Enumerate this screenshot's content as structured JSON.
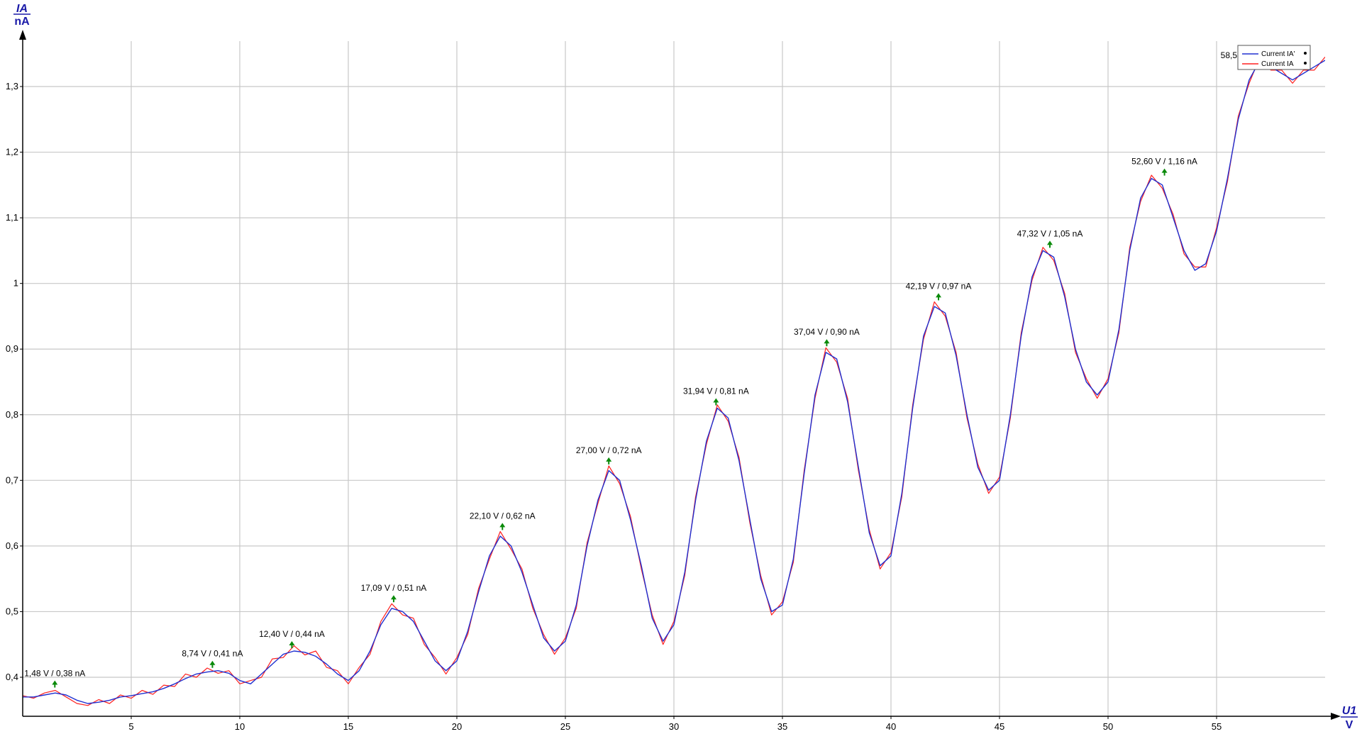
{
  "chart_data": {
    "type": "line",
    "title": "",
    "y_axis": {
      "label": "IA",
      "unit": "nA",
      "lim": [
        0.33,
        1.37
      ],
      "ticks": [
        0.4,
        0.5,
        0.6,
        0.7,
        0.8,
        0.9,
        1,
        1.1,
        1.2,
        1.3
      ],
      "tick_labels": [
        "0,4",
        "0,5",
        "0,6",
        "0,7",
        "0,8",
        "0,9",
        "1",
        "1,1",
        "1,2",
        "1,3"
      ]
    },
    "x_axis": {
      "label": "U1",
      "unit": "V",
      "lim": [
        0,
        60
      ],
      "ticks": [
        5,
        10,
        15,
        20,
        25,
        30,
        35,
        40,
        45,
        50,
        55
      ],
      "tick_labels": [
        "5",
        "10",
        "15",
        "20",
        "25",
        "30",
        "35",
        "40",
        "45",
        "50",
        "55"
      ]
    },
    "grid": true,
    "legend": {
      "placement": "top-right",
      "entries": [
        {
          "name": "Current IA'",
          "color": "#2030d0"
        },
        {
          "name": "Current IA",
          "color": "#ff2020"
        }
      ]
    },
    "series": [
      {
        "name": "Current IA'",
        "color": "#2030d0",
        "x": [
          0,
          0.5,
          1,
          1.5,
          2,
          2.5,
          3,
          3.5,
          4,
          4.5,
          5,
          5.5,
          6,
          6.5,
          7,
          7.5,
          8,
          8.5,
          9,
          9.5,
          10,
          10.5,
          11,
          11.5,
          12,
          12.5,
          13,
          13.5,
          14,
          14.5,
          15,
          15.5,
          16,
          16.5,
          17,
          17.5,
          18,
          18.5,
          19,
          19.5,
          20,
          20.5,
          21,
          21.5,
          22,
          22.5,
          23,
          23.5,
          24,
          24.5,
          25,
          25.5,
          26,
          26.5,
          27,
          27.5,
          28,
          28.5,
          29,
          29.5,
          30,
          30.5,
          31,
          31.5,
          32,
          32.5,
          33,
          33.5,
          34,
          34.5,
          35,
          35.5,
          36,
          36.5,
          37,
          37.5,
          38,
          38.5,
          39,
          39.5,
          40,
          40.5,
          41,
          41.5,
          42,
          42.5,
          43,
          43.5,
          44,
          44.5,
          45,
          45.5,
          46,
          46.5,
          47,
          47.5,
          48,
          48.5,
          49,
          49.5,
          50,
          50.5,
          51,
          51.5,
          52,
          52.5,
          53,
          53.5,
          54,
          54.5,
          55,
          55.5,
          56,
          56.5,
          57,
          57.5,
          58,
          58.5,
          59,
          59.5,
          60
        ],
        "values": [
          0.37,
          0.37,
          0.373,
          0.376,
          0.373,
          0.365,
          0.36,
          0.362,
          0.365,
          0.37,
          0.372,
          0.375,
          0.378,
          0.383,
          0.39,
          0.398,
          0.405,
          0.408,
          0.41,
          0.406,
          0.395,
          0.39,
          0.405,
          0.42,
          0.435,
          0.44,
          0.438,
          0.432,
          0.42,
          0.405,
          0.395,
          0.41,
          0.44,
          0.48,
          0.505,
          0.5,
          0.485,
          0.455,
          0.425,
          0.41,
          0.425,
          0.47,
          0.53,
          0.585,
          0.615,
          0.6,
          0.56,
          0.51,
          0.46,
          0.44,
          0.455,
          0.51,
          0.6,
          0.67,
          0.715,
          0.7,
          0.64,
          0.57,
          0.49,
          0.455,
          0.48,
          0.56,
          0.67,
          0.76,
          0.81,
          0.795,
          0.73,
          0.64,
          0.55,
          0.5,
          0.51,
          0.58,
          0.71,
          0.83,
          0.895,
          0.885,
          0.82,
          0.72,
          0.62,
          0.57,
          0.585,
          0.68,
          0.81,
          0.92,
          0.965,
          0.955,
          0.89,
          0.8,
          0.72,
          0.685,
          0.7,
          0.8,
          0.92,
          1.01,
          1.05,
          1.04,
          0.98,
          0.9,
          0.85,
          0.83,
          0.85,
          0.93,
          1.05,
          1.13,
          1.16,
          1.15,
          1.1,
          1.05,
          1.02,
          1.03,
          1.08,
          1.16,
          1.25,
          1.31,
          1.34,
          1.33,
          1.32,
          1.31,
          1.32,
          1.33,
          1.34
        ]
      },
      {
        "name": "Current IA",
        "color": "#ff2020",
        "x": [
          0,
          0.5,
          1,
          1.5,
          2,
          2.5,
          3,
          3.5,
          4,
          4.5,
          5,
          5.5,
          6,
          6.5,
          7,
          7.5,
          8,
          8.5,
          9,
          9.5,
          10,
          10.5,
          11,
          11.5,
          12,
          12.5,
          13,
          13.5,
          14,
          14.5,
          15,
          15.5,
          16,
          16.5,
          17,
          17.5,
          18,
          18.5,
          19,
          19.5,
          20,
          20.5,
          21,
          21.5,
          22,
          22.5,
          23,
          23.5,
          24,
          24.5,
          25,
          25.5,
          26,
          26.5,
          27,
          27.5,
          28,
          28.5,
          29,
          29.5,
          30,
          30.5,
          31,
          31.5,
          32,
          32.5,
          33,
          33.5,
          34,
          34.5,
          35,
          35.5,
          36,
          36.5,
          37,
          37.5,
          38,
          38.5,
          39,
          39.5,
          40,
          40.5,
          41,
          41.5,
          42,
          42.5,
          43,
          43.5,
          44,
          44.5,
          45,
          45.5,
          46,
          46.5,
          47,
          47.5,
          48,
          48.5,
          49,
          49.5,
          50,
          50.5,
          51,
          51.5,
          52,
          52.5,
          53,
          53.5,
          54,
          54.5,
          55,
          55.5,
          56,
          56.5,
          57,
          57.5,
          58,
          58.5,
          59,
          59.5,
          60
        ],
        "values": [
          0.372,
          0.368,
          0.376,
          0.38,
          0.37,
          0.36,
          0.357,
          0.366,
          0.36,
          0.373,
          0.368,
          0.38,
          0.374,
          0.388,
          0.386,
          0.405,
          0.4,
          0.414,
          0.406,
          0.41,
          0.39,
          0.395,
          0.4,
          0.428,
          0.43,
          0.448,
          0.434,
          0.44,
          0.415,
          0.41,
          0.39,
          0.415,
          0.435,
          0.485,
          0.512,
          0.495,
          0.49,
          0.45,
          0.43,
          0.405,
          0.43,
          0.465,
          0.535,
          0.58,
          0.622,
          0.595,
          0.565,
          0.505,
          0.465,
          0.435,
          0.46,
          0.505,
          0.605,
          0.665,
          0.722,
          0.695,
          0.645,
          0.565,
          0.495,
          0.45,
          0.485,
          0.555,
          0.675,
          0.755,
          0.815,
          0.79,
          0.735,
          0.635,
          0.555,
          0.495,
          0.515,
          0.575,
          0.715,
          0.825,
          0.902,
          0.88,
          0.825,
          0.715,
          0.625,
          0.565,
          0.59,
          0.675,
          0.815,
          0.915,
          0.972,
          0.95,
          0.895,
          0.795,
          0.725,
          0.68,
          0.705,
          0.795,
          0.925,
          1.005,
          1.055,
          1.035,
          0.985,
          0.895,
          0.855,
          0.825,
          0.855,
          0.925,
          1.055,
          1.125,
          1.165,
          1.145,
          1.105,
          1.045,
          1.025,
          1.025,
          1.085,
          1.155,
          1.255,
          1.305,
          1.345,
          1.325,
          1.325,
          1.305,
          1.325,
          1.325,
          1.345
        ]
      }
    ],
    "annotations": [
      {
        "x": 1.48,
        "y": 0.38,
        "text": "1,48 V / 0,38 nA"
      },
      {
        "x": 8.74,
        "y": 0.41,
        "text": "8,74 V / 0,41 nA"
      },
      {
        "x": 12.4,
        "y": 0.44,
        "text": "12,40 V / 0,44 nA"
      },
      {
        "x": 17.09,
        "y": 0.51,
        "text": "17,09 V / 0,51 nA"
      },
      {
        "x": 22.1,
        "y": 0.62,
        "text": "22,10 V / 0,62 nA"
      },
      {
        "x": 27.0,
        "y": 0.72,
        "text": "27,00 V / 0,72 nA"
      },
      {
        "x": 31.94,
        "y": 0.81,
        "text": "31,94 V / 0,81 nA"
      },
      {
        "x": 37.04,
        "y": 0.9,
        "text": "37,04 V / 0,90 nA"
      },
      {
        "x": 42.19,
        "y": 0.97,
        "text": "42,19 V / 0,97 nA"
      },
      {
        "x": 47.32,
        "y": 1.05,
        "text": "47,32 V / 1,05 nA"
      },
      {
        "x": 52.6,
        "y": 1.16,
        "text": "52,60 V / 1,16 nA"
      },
      {
        "x": 58.5,
        "y": 1.34,
        "text": "58,5"
      }
    ]
  }
}
